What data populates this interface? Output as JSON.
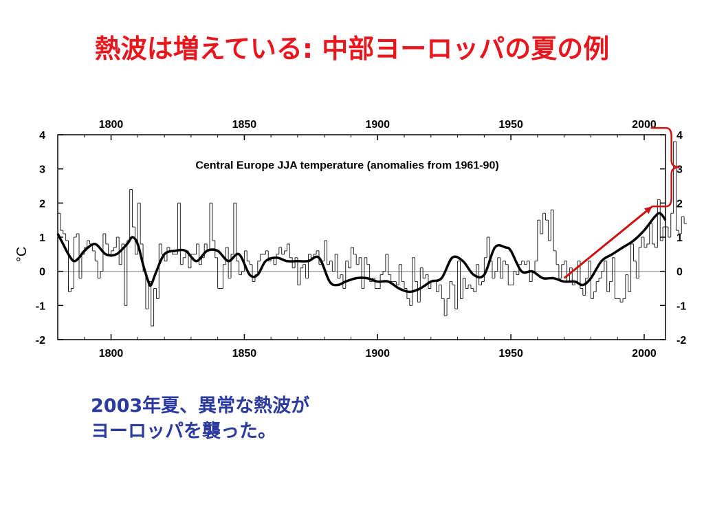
{
  "slide": {
    "title": "熱波は増えている: 中部ヨーロッパの夏の例",
    "caption_line1": "2003年夏、異常な熱波が",
    "caption_line2": "ヨーロッパを襲った。"
  },
  "colors": {
    "title": "#e8171e",
    "caption": "#2b3a9e",
    "data": "#000000",
    "annotation": "#cc1111"
  },
  "chart_data": {
    "type": "line",
    "title": "Central Europe JJA temperature (anomalies from 1961-90)",
    "ylabel": "°C",
    "xlabel": "",
    "xlim": [
      1780,
      2008
    ],
    "ylim": [
      -2,
      4
    ],
    "x_ticks": [
      1800,
      1850,
      1900,
      1950,
      2000
    ],
    "y_ticks": [
      -2,
      -1,
      0,
      1,
      2,
      3,
      4
    ],
    "y_tick_labels": [
      "-2",
      "-1",
      "0",
      "1",
      "2",
      "3",
      "4"
    ],
    "x_axes": [
      "top",
      "bottom"
    ],
    "y_axes": [
      "left",
      "right"
    ],
    "zero_line": true,
    "series": [
      {
        "style": "step",
        "start_year": 1780,
        "values": [
          1.7,
          1.2,
          1.1,
          0.9,
          -0.6,
          -0.5,
          1.0,
          1.1,
          -0.2,
          0.5,
          0.7,
          0.9,
          0.8,
          0.6,
          0.3,
          -0.2,
          0.0,
          1.1,
          0.8,
          0.5,
          0.6,
          0.7,
          1.0,
          0.2,
          0.8,
          -1.0,
          0.9,
          2.4,
          1.3,
          0.5,
          2.0,
          0.8,
          0.0,
          -1.1,
          -0.3,
          -1.6,
          -0.5,
          -0.8,
          0.8,
          0.5,
          0.3,
          0.7,
          0.6,
          0.5,
          0.5,
          2.0,
          0.2,
          0.4,
          0.6,
          0.1,
          0.5,
          0.5,
          0.8,
          0.2,
          0.4,
          0.8,
          0.6,
          2.0,
          0.9,
          0.4,
          -0.5,
          -0.5,
          0.2,
          0.7,
          -0.2,
          0.5,
          2.0,
          0.3,
          -0.1,
          0.0,
          0.6,
          0.3,
          0.2,
          -0.3,
          -0.1,
          0.3,
          0.5,
          0.5,
          0.6,
          0.3,
          0.4,
          0.2,
          0.5,
          0.7,
          0.5,
          0.6,
          0.8,
          0.4,
          0.1,
          0.4,
          -0.4,
          0.1,
          0.2,
          -0.2,
          0.5,
          0.4,
          0.5,
          0.6,
          0.2,
          0.3,
          0.9,
          0.2,
          0.3,
          0.0,
          0.5,
          -0.2,
          -0.1,
          -0.5,
          0.3,
          0.1,
          0.7,
          0.5,
          0.2,
          0.4,
          -0.5,
          0.4,
          0.2,
          -0.3,
          -0.2,
          -0.5,
          -0.5,
          -0.1,
          0.0,
          0.5,
          -0.1,
          -0.3,
          -0.3,
          -0.4,
          0.2,
          -0.3,
          -0.5,
          -0.8,
          -1.0,
          0.4,
          -0.3,
          -0.9,
          0.1,
          -0.2,
          -0.1,
          -0.5,
          -0.3,
          -0.3,
          -0.6,
          -0.4,
          -0.8,
          -1.3,
          -0.8,
          -0.3,
          -0.4,
          -1.1,
          0.3,
          -0.8,
          -0.2,
          -0.5,
          -0.4,
          -0.5,
          -0.6,
          0.2,
          -0.4,
          -0.3,
          0.4,
          1.0,
          0.3,
          -0.2,
          0.0,
          0.4,
          -0.2,
          0.3,
          0.2,
          -0.4,
          -0.4,
          0.0,
          -0.1,
          0.2,
          0.3,
          0.2,
          0.3,
          -0.3,
          0.0,
          0.3,
          1.5,
          1.1,
          1.7,
          1.5,
          0.9,
          1.8,
          0.6,
          0.2,
          -0.2,
          0.2,
          0.3,
          -0.3,
          0.1,
          -0.4,
          -0.3,
          0.3,
          -0.5,
          -0.7,
          -0.2,
          0.3,
          -0.8,
          -0.6,
          -0.3,
          -0.2,
          0.0,
          0.3,
          -0.6,
          -0.3,
          0.4,
          -0.8,
          -0.8,
          -0.9,
          -0.8,
          -0.1,
          -0.6,
          0.8,
          0.3,
          -0.2,
          0.7,
          1.0,
          0.7,
          0.8,
          1.4,
          0.8,
          0.7,
          2.1,
          0.9,
          1.3,
          1.3,
          1.0,
          1.7,
          3.8,
          1.2,
          1.1,
          1.6,
          1.4
        ]
      },
      {
        "style": "smooth",
        "x": [
          1780,
          1782,
          1784,
          1786,
          1788,
          1790,
          1794,
          1798,
          1802,
          1806,
          1808,
          1810,
          1812,
          1814,
          1815,
          1817,
          1820,
          1824,
          1828,
          1832,
          1836,
          1840,
          1844,
          1848,
          1852,
          1855,
          1858,
          1862,
          1866,
          1870,
          1874,
          1878,
          1882,
          1885,
          1888,
          1892,
          1896,
          1900,
          1904,
          1908,
          1912,
          1916,
          1920,
          1924,
          1928,
          1932,
          1936,
          1940,
          1944,
          1948,
          1950,
          1954,
          1958,
          1962,
          1966,
          1970,
          1974,
          1977,
          1980,
          1984,
          1988,
          1992,
          1996,
          2000,
          2004,
          2006,
          2008
        ],
        "y": [
          1.1,
          0.8,
          0.5,
          0.3,
          0.4,
          0.6,
          0.8,
          0.5,
          0.5,
          0.8,
          1.0,
          0.8,
          0.2,
          -0.3,
          -0.4,
          0.0,
          0.5,
          0.6,
          0.6,
          0.3,
          0.6,
          0.6,
          0.3,
          0.5,
          -0.1,
          -0.1,
          0.3,
          0.4,
          0.3,
          0.3,
          0.3,
          0.4,
          -0.3,
          -0.4,
          -0.3,
          -0.2,
          -0.2,
          -0.3,
          -0.3,
          -0.5,
          -0.6,
          -0.5,
          -0.3,
          -0.2,
          0.4,
          0.3,
          -0.1,
          -0.1,
          0.7,
          0.7,
          0.6,
          0.0,
          0.0,
          -0.2,
          -0.2,
          -0.3,
          -0.3,
          -0.4,
          -0.2,
          0.3,
          0.5,
          0.7,
          0.9,
          1.2,
          1.6,
          1.7,
          1.5
        ]
      }
    ],
    "annotations": {
      "arrow_from": [
        1970,
        -0.2
      ],
      "arrow_to": [
        2003,
        1.9
      ],
      "bracket_y_range": [
        1.9,
        4.2
      ],
      "bracket_x": 2003
    }
  }
}
